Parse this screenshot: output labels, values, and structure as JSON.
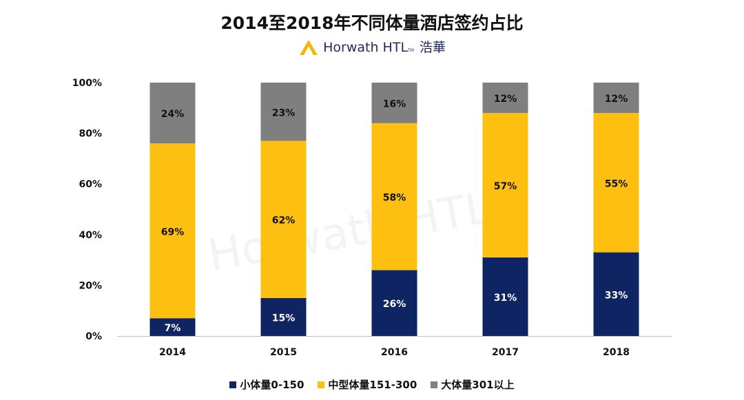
{
  "title": "2014至2018年不同体量酒店签约占比",
  "logo": {
    "brand": "Horwath HTL",
    "tm": "TM",
    "sub": "浩華"
  },
  "watermark": "Horwath HTL",
  "colors": {
    "small": "#0f2462",
    "medium": "#fdbf10",
    "large": "#7f7f7f"
  },
  "chart_data": {
    "type": "bar",
    "stacked": true,
    "categories": [
      "2014",
      "2015",
      "2016",
      "2017",
      "2018"
    ],
    "series": [
      {
        "name": "小体量0-150",
        "values": [
          7,
          15,
          26,
          31,
          33
        ],
        "labels": [
          "7%",
          "15%",
          "26%",
          "31%",
          "33%"
        ]
      },
      {
        "name": "中型体量151-300",
        "values": [
          69,
          62,
          58,
          57,
          55
        ],
        "labels": [
          "69%",
          "62%",
          "58%",
          "57%",
          "55%"
        ]
      },
      {
        "name": "大体量301以上",
        "values": [
          24,
          23,
          16,
          12,
          12
        ],
        "labels": [
          "24%",
          "23%",
          "16%",
          "12%",
          "12%"
        ]
      }
    ],
    "ylim": [
      0,
      100
    ],
    "yticks": [
      "0%",
      "20%",
      "40%",
      "60%",
      "80%",
      "100%"
    ],
    "grid": false,
    "legend_position": "bottom"
  }
}
